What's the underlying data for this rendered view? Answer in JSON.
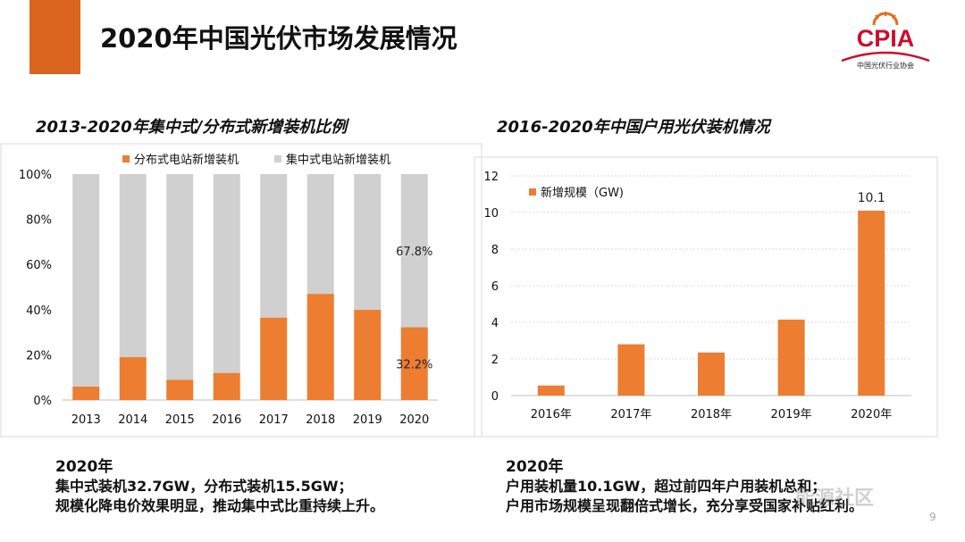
{
  "header": {
    "title": "2020年中国光伏市场发展情况",
    "logo_text": "CPIA",
    "logo_subtext": "中国光伏行业协会",
    "accent_color": "#d9651f"
  },
  "colors": {
    "orange": "#ed7d31",
    "gray": "#d0d0d0",
    "logo_red": "#c8102e"
  },
  "chart_data": [
    {
      "type": "bar",
      "stacked": true,
      "title": "2013-2020年集中式/分布式新增装机比例",
      "categories": [
        "2013",
        "2014",
        "2015",
        "2016",
        "2017",
        "2018",
        "2019",
        "2020"
      ],
      "series": [
        {
          "name": "分布式电站新增装机",
          "color": "#ed7d31",
          "values": [
            6,
            19,
            9,
            12,
            36.5,
            47,
            40,
            32.2
          ]
        },
        {
          "name": "集中式电站新增装机",
          "color": "#d0d0d0",
          "values": [
            94,
            81,
            91,
            88,
            63.5,
            53,
            60,
            67.8
          ]
        }
      ],
      "yticks": [
        "0%",
        "20%",
        "40%",
        "60%",
        "80%",
        "100%"
      ],
      "ylim": [
        0,
        100
      ],
      "data_labels": [
        {
          "category": "2020",
          "series": "集中式电站新增装机",
          "text": "67.8%"
        },
        {
          "category": "2020",
          "series": "分布式电站新增装机",
          "text": "32.2%"
        }
      ],
      "legend_position": "top"
    },
    {
      "type": "bar",
      "title": "2016-2020年中国户用光伏装机情况",
      "categories": [
        "2016年",
        "2017年",
        "2018年",
        "2019年",
        "2020年"
      ],
      "series": [
        {
          "name": "新增规模（GW)",
          "color": "#ed7d31",
          "values": [
            0.55,
            2.8,
            2.35,
            4.15,
            10.1
          ]
        }
      ],
      "yticks": [
        "0",
        "2",
        "4",
        "6",
        "8",
        "10",
        "12"
      ],
      "ylim": [
        0,
        12
      ],
      "grid": true,
      "data_labels": [
        {
          "category": "2020年",
          "text": "10.1"
        }
      ],
      "legend_position": "top-left"
    }
  ],
  "notes": {
    "left": {
      "year": "2020年",
      "line1": "集中式装机32.7GW，分布式装机15.5GW；",
      "line2": "规模化降电价效果明显，推动集中式比重持续上升。"
    },
    "right": {
      "year": "2020年",
      "line1": "户用装机量10.1GW，超过前四年户用装机总和；",
      "line2": "户用市场规模呈现翻倍式增长，充分享受国家补贴红利。"
    }
  },
  "watermark": "能源社区",
  "page_number": "9"
}
